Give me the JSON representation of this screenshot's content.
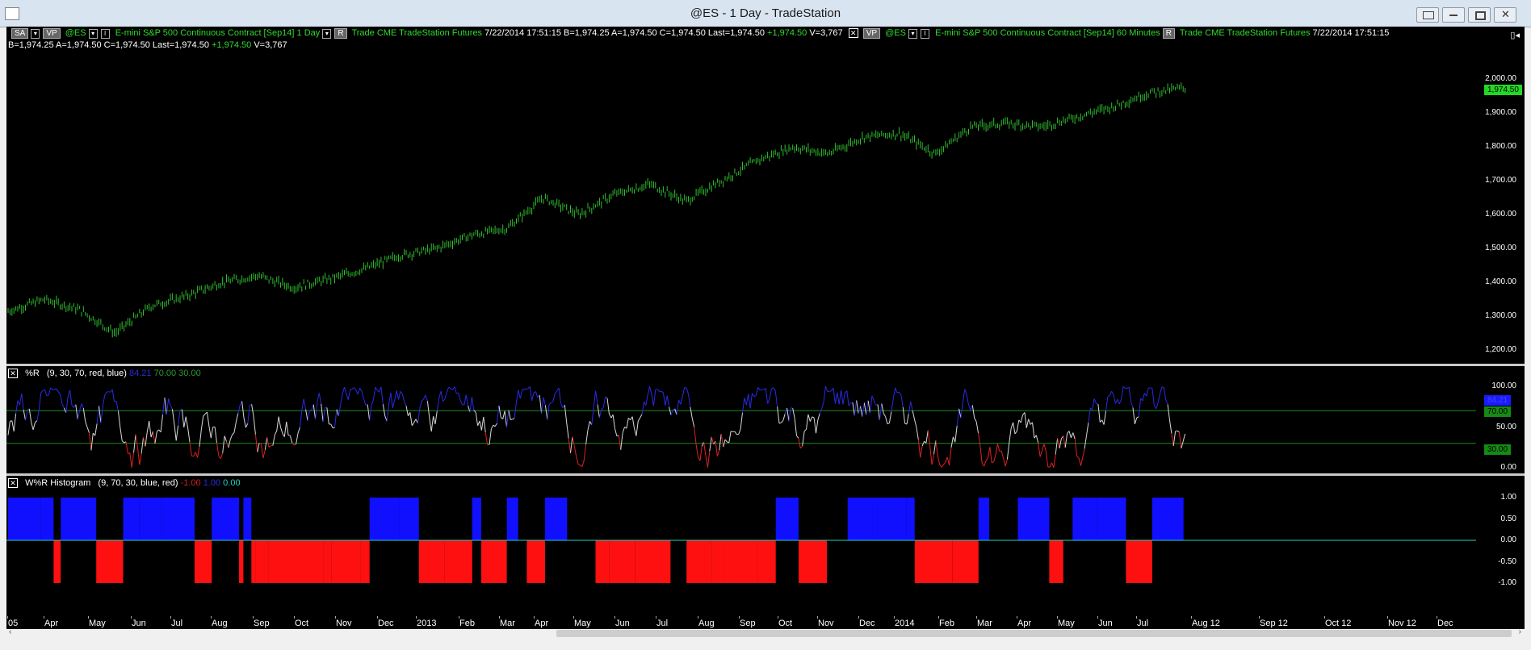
{
  "window": {
    "title": "@ES - 1 Day - TradeStation"
  },
  "price_pane": {
    "sym_list_label": "SA",
    "vp_label": "VP",
    "symbol": "@ES",
    "description": "E-mini S&P 500 Continuous Contract [Sep14]",
    "interval": "1 Day",
    "r_label": "R",
    "source": "Trade  CME  TradeStation  Futures",
    "date": "7/22/2014",
    "time": "17:51:15",
    "quote": "B=1,974.25  A=1,974.50  C=1,974.50  Last=1,974.50",
    "change": "+1,974.50",
    "volume": "V=3,767",
    "quote2": "B=1,974.25  A=1,974.50  C=1,974.50  Last=1,974.50",
    "change2": "+1,974.50",
    "volume2": "V=3,767",
    "vp2_label": "VP",
    "symbol2": "@ES",
    "description2": "E-mini S&P 500 Continuous Contract [Sep14]",
    "interval2": "60 Minutes",
    "r2_label": "R",
    "source2": "Trade  CME  TradeStation  Futures",
    "date2": "7/22/2014",
    "time2": "17:51:15",
    "last_price_tag": "1,974.50",
    "y_ticks": [
      "2,000.00",
      "1,900.00",
      "1,800.00",
      "1,700.00",
      "1,600.00",
      "1,500.00",
      "1,400.00",
      "1,300.00",
      "1,200.00"
    ]
  },
  "wr_pane": {
    "name": "%R",
    "params": "(9, 30, 70, red, blue)",
    "v1": "84.21",
    "v2": "70.00",
    "v3": "30.00",
    "y_ticks": [
      "100.00",
      "50.00",
      "0.00"
    ],
    "tags": [
      "84.21",
      "70.00",
      "30.00"
    ]
  },
  "hist_pane": {
    "name": "W%R Histogram",
    "params": "(9, 70, 30, blue, red)",
    "v1": "-1.00",
    "v2": "1.00",
    "v3": "0.00",
    "y_ticks": [
      "1.00",
      "0.50",
      "0.00",
      "-0.50",
      "-1.00"
    ]
  },
  "x_axis": {
    "labels": [
      "05",
      "Apr",
      "May",
      "Jun",
      "Jul",
      "Aug",
      "Sep",
      "Oct",
      "Nov",
      "Dec",
      "2013",
      "Feb",
      "Mar",
      "Apr",
      "May",
      "Jun",
      "Jul",
      "Aug",
      "Sep",
      "Oct",
      "Nov",
      "Dec",
      "2014",
      "Feb",
      "Mar",
      "Apr",
      "May",
      "Jun",
      "Jul",
      "Aug  12",
      "Sep  12",
      "Oct  12",
      "Nov  12",
      "Dec"
    ]
  },
  "chart_data": [
    {
      "type": "line",
      "title": "@ES - 1 Day",
      "ylim": [
        1160,
        2060
      ],
      "approx_close_points": [
        1315,
        1350,
        1320,
        1250,
        1330,
        1360,
        1400,
        1420,
        1385,
        1410,
        1440,
        1480,
        1500,
        1540,
        1560,
        1650,
        1600,
        1660,
        1690,
        1640,
        1700,
        1760,
        1800,
        1780,
        1830,
        1840,
        1780,
        1860,
        1870,
        1860,
        1890,
        1920,
        1960,
        1975
      ],
      "last": 1974.5
    },
    {
      "type": "line",
      "title": "%R",
      "ylim": [
        0,
        100
      ],
      "levels": [
        70,
        30
      ],
      "last": 84.21
    },
    {
      "type": "bar",
      "title": "W%R Histogram",
      "ylim": [
        -1,
        1
      ],
      "values": [
        1,
        -1
      ]
    }
  ]
}
